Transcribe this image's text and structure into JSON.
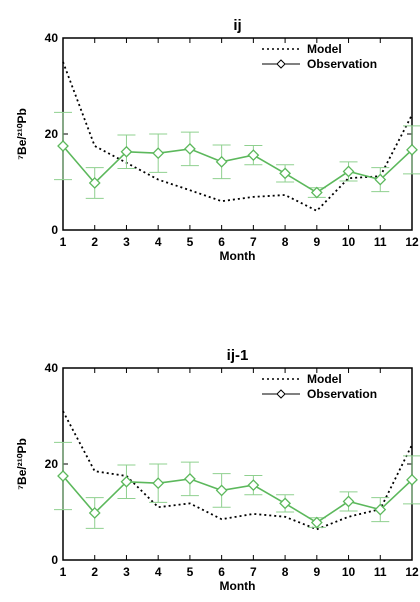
{
  "chart_data": [
    {
      "type": "line",
      "title": "ij",
      "xlabel": "Month",
      "ylabel": "⁷Be/²¹⁰Pb",
      "xlim": [
        1,
        12
      ],
      "ylim": [
        0,
        40
      ],
      "x": [
        1,
        2,
        3,
        4,
        5,
        6,
        7,
        8,
        9,
        10,
        11,
        12
      ],
      "x_ticks": [
        "1",
        "2",
        "3",
        "4",
        "5",
        "6",
        "7",
        "8",
        "9",
        "10",
        "11",
        "12"
      ],
      "y_ticks": [
        "0",
        "20",
        "40"
      ],
      "legend_position": "top-right",
      "series": [
        {
          "name": "Model",
          "style": "dotted",
          "color": "#000000",
          "values": [
            35,
            17.5,
            14,
            10.5,
            8.3,
            6,
            6.9,
            7.3,
            4,
            10.8,
            11.2,
            24
          ]
        },
        {
          "name": "Observation",
          "style": "solid-diamond-errorbars",
          "color": "#5cb85c",
          "values": [
            17.5,
            9.8,
            16.3,
            16,
            16.9,
            14.2,
            15.6,
            11.8,
            7.8,
            12.2,
            10.5,
            16.7
          ],
          "error": [
            7,
            3.2,
            3.5,
            4,
            3.5,
            3.5,
            2,
            1.8,
            1,
            2,
            2.5,
            5
          ]
        }
      ]
    },
    {
      "type": "line",
      "title": "ij-1",
      "xlabel": "Month",
      "ylabel": "⁷Be/²¹⁰Pb",
      "xlim": [
        1,
        12
      ],
      "ylim": [
        0,
        40
      ],
      "x": [
        1,
        2,
        3,
        4,
        5,
        6,
        7,
        8,
        9,
        10,
        11,
        12
      ],
      "x_ticks": [
        "1",
        "2",
        "3",
        "4",
        "5",
        "6",
        "7",
        "8",
        "9",
        "10",
        "11",
        "12"
      ],
      "y_ticks": [
        "0",
        "20",
        "40"
      ],
      "legend_position": "top-right",
      "series": [
        {
          "name": "Model",
          "style": "dotted",
          "color": "#000000",
          "values": [
            31,
            18.5,
            17.5,
            11,
            11.8,
            8.5,
            9.6,
            9,
            6.4,
            9,
            10.6,
            24
          ]
        },
        {
          "name": "Observation",
          "style": "solid-diamond-errorbars",
          "color": "#5cb85c",
          "values": [
            17.5,
            9.8,
            16.3,
            16,
            16.9,
            14.5,
            15.6,
            11.8,
            7.8,
            12.2,
            10.5,
            16.7
          ],
          "error": [
            7,
            3.2,
            3.5,
            4,
            3.5,
            3.5,
            2,
            1.8,
            1,
            2,
            2.5,
            5
          ]
        }
      ]
    }
  ]
}
